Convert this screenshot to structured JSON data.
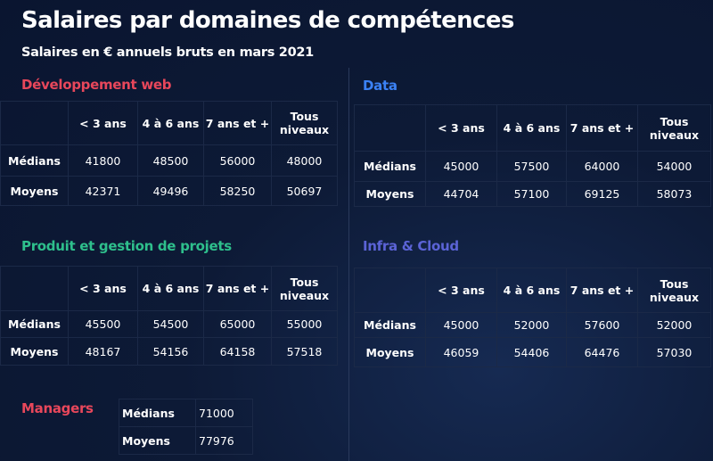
{
  "title": "Salaires par domaines de compétences",
  "subtitle": "Salaires en € annuels bruts en mars 2021",
  "colors": {
    "web": "#e8475b",
    "data": "#3b82f6",
    "produit": "#2ebf8c",
    "infra": "#5b63d6",
    "managers": "#e8475b"
  },
  "columns": [
    "< 3 ans",
    "4 à 6 ans",
    "7 ans et +",
    "Tous niveaux"
  ],
  "row_labels": {
    "medians": "Médians",
    "moyens": "Moyens"
  },
  "sections": {
    "web": {
      "title": "Développement web",
      "medians": [
        41800,
        48500,
        56000,
        48000
      ],
      "moyens": [
        42371,
        49496,
        58250,
        50697
      ]
    },
    "data": {
      "title": "Data",
      "medians": [
        45000,
        57500,
        64000,
        54000
      ],
      "moyens": [
        44704,
        57100,
        69125,
        58073
      ]
    },
    "produit": {
      "title": "Produit et gestion de projets",
      "medians": [
        45500,
        54500,
        65000,
        55000
      ],
      "moyens": [
        48167,
        54156,
        64158,
        57518
      ]
    },
    "infra": {
      "title": "Infra & Cloud",
      "medians": [
        45000,
        52000,
        57600,
        52000
      ],
      "moyens": [
        46059,
        54406,
        64476,
        57030
      ]
    }
  },
  "managers": {
    "title": "Managers",
    "medians": 71000,
    "moyens": 77976
  }
}
